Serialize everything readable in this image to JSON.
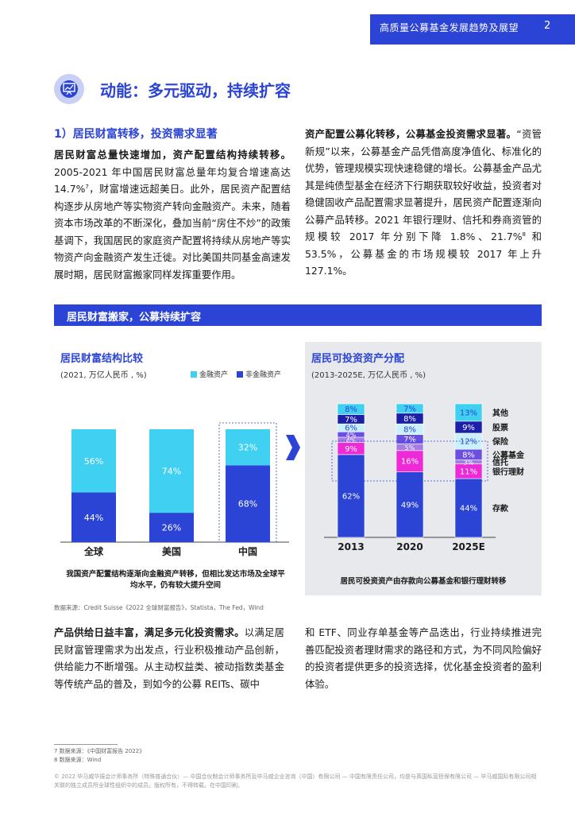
{
  "header": {
    "title": "高质量公募基金发展趋势及展望",
    "page": "2"
  },
  "section": {
    "icon": "presentation-chart-icon",
    "title": "动能：多元驱动，持续扩容"
  },
  "subheading": "1）居民财富转移，投资需求显著",
  "para1": {
    "lead": "居民财富总量快速增加，资产配置结构持续转移。",
    "text_a": "2005-2021 年中国居民财富总量年均复合增速高达 14.7%",
    "sup": "7",
    "text_b": "，财富增速远超美日。此外，居民资产配置结构逐步从房地产等实物资产转向金融资产。未来，随着资本市场改革的不断深化，叠加当前“房住不炒”的政策基调下，我国居民的家庭资产配置将持续从房地产等实物资产向金融资产发生迁徙。对比美国共同基金高速发展时期，居民财富搬家同样发挥重要作用。"
  },
  "para2": {
    "lead": "资产配置公募化转移，公募基金投资需求显著。",
    "text_a": "“资管新规”以来，公募基金产品凭借高度净值化、标准化的优势，管理规模实现快速稳健的增长。公募基金产品尤其是纯债型基金在经济下行期获取较好收益，投资者对稳健固收产品配置需求显著提升，居民资产配置逐渐向公募产品转移。2021 年银行理财、信托和券商资管的规模较 2017 年分别下降 1.8%、21.7%",
    "sup": "8",
    "text_b": " 和 53.5%，公募基金的市场规模较 2017 年上升 127.1%。"
  },
  "banner": "居民财富搬家，公募持续扩容",
  "chart_data": [
    {
      "type": "bar",
      "title": "居民财富结构比较",
      "subtitle": "(2021, 万亿人民币 , %)",
      "categories": [
        "全球",
        "美国",
        "中国"
      ],
      "series": [
        {
          "name": "非金融资产",
          "values": [
            44,
            26,
            68
          ],
          "color": "#2b44d6"
        },
        {
          "name": "金融资产",
          "values": [
            56,
            74,
            32
          ],
          "color": "#3fd0f2"
        }
      ],
      "ylim": [
        0,
        100
      ],
      "caption": "我国资产配置结构逐渐向金融资产转移，但相比发达市场及全球平均水平，仍有较大提升空间"
    },
    {
      "type": "bar",
      "title": "居民可投资资产分配",
      "subtitle": "(2013-2025E, 万亿人民币 , %)",
      "categories": [
        "2013",
        "2020",
        "2025E"
      ],
      "series": [
        {
          "name": "存款",
          "values": [
            62,
            49,
            44
          ],
          "color": "#2b44d6"
        },
        {
          "name": "银行理财",
          "values": [
            9,
            16,
            11
          ],
          "color": "#ee2ad8"
        },
        {
          "name": "信托",
          "values": [
            4,
            5,
            3
          ],
          "color": "#a57be6"
        },
        {
          "name": "公募基金",
          "values": [
            4,
            7,
            8
          ],
          "color": "#6a4fe0"
        },
        {
          "name": "保险",
          "values": [
            6,
            8,
            12
          ],
          "color": "#c9f1fb"
        },
        {
          "name": "股票",
          "values": [
            7,
            8,
            9
          ],
          "color": "#1c20a8"
        },
        {
          "name": "其他",
          "values": [
            8,
            7,
            13
          ],
          "color": "#3fd0f2"
        }
      ],
      "ylim": [
        0,
        100
      ],
      "caption": "居民可投资资产由存款向公募基金和银行理财转移"
    }
  ],
  "source": "数据来源：Credit Suisse《2022 全球财富报告》，Statista，The Fed，Wind",
  "para3": {
    "lead": "产品供给日益丰富，满足多元化投资需求。",
    "text": "以满足居民财富管理需求为出发点，行业积极推动产品创新，供给能力不断增强。从主动权益类、被动指数类基金等传统产品的普及，到如今的公募 REITs、碳中和 ETF、同业存单基金等产品迭出，行业持续推进完善匹配投资者理财需求的路径和方式，为不同风险偏好的投资者提供更多的投资选择，优化基金投资者的盈利体验。"
  },
  "footnotes": [
    "7 数据来源：《中国财富报告 2022》",
    "8 数据来源：Wind"
  ],
  "copyright": "© 2022 毕马威华振会计师事务所（特殊普通合伙）— 中国合伙制会计师事务所及毕马威企业咨询（中国）有限公司 — 中国有限责任公司，均是与英国私营担保有限公司 — 毕马威国际有限公司相关联的独立成员所全球性组织中的成员。版权所有，不得转载。在中国印刷。"
}
